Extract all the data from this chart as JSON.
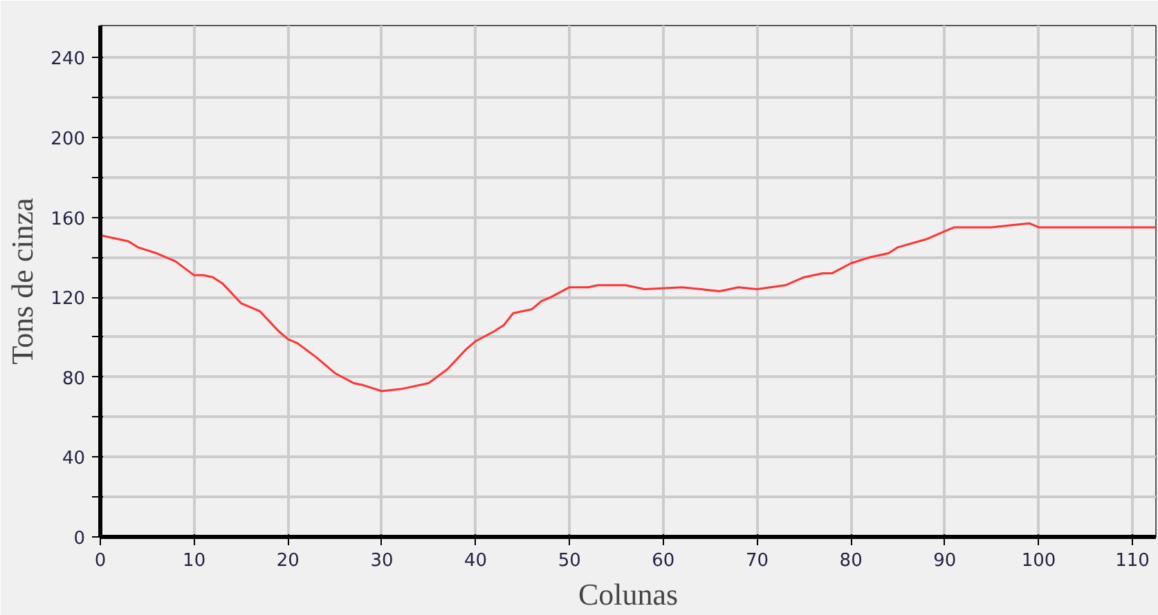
{
  "chart_data": {
    "type": "line",
    "xlabel": "Colunas",
    "ylabel": "Tons de cinza",
    "x": [
      0,
      2,
      3,
      4,
      6,
      8,
      10,
      11,
      12,
      13,
      15,
      17,
      19,
      20,
      21,
      23,
      25,
      27,
      28,
      30,
      32,
      35,
      37,
      39,
      40,
      42,
      43,
      44,
      46,
      47,
      48,
      50,
      52,
      53,
      56,
      58,
      62,
      64,
      66,
      68,
      70,
      73,
      75,
      77,
      78,
      80,
      82,
      84,
      85,
      88,
      90,
      91,
      95,
      97,
      99,
      100,
      112.5
    ],
    "series": [
      {
        "color": "#ff3333",
        "values": [
          151,
          149,
          148,
          145,
          142,
          138,
          131,
          131,
          130,
          127,
          117,
          113,
          103,
          99,
          97,
          90,
          82,
          77,
          76,
          73,
          74,
          77,
          84,
          94,
          98,
          103,
          106,
          112,
          114,
          118,
          120,
          125,
          125,
          126,
          126,
          124,
          125,
          124,
          123,
          125,
          124,
          126,
          130,
          132,
          132,
          137,
          140,
          142,
          145,
          149,
          153,
          155,
          155,
          156,
          157,
          155,
          155
        ]
      }
    ],
    "xlim": [
      0,
      112.5
    ],
    "ylim": [
      0,
      256
    ],
    "xticks": [
      0,
      10,
      20,
      30,
      40,
      50,
      60,
      70,
      80,
      90,
      100,
      110
    ],
    "yticks": [
      0,
      {
        "value": 20,
        "label": null
      },
      40,
      {
        "value": 60,
        "label": null
      },
      80,
      {
        "value": 100,
        "label": null
      },
      120,
      {
        "value": 140,
        "label": null
      },
      160,
      {
        "value": 180,
        "label": null
      },
      200,
      {
        "value": 220,
        "label": null
      },
      240
    ],
    "grid": true,
    "marker": "none",
    "line_style": "solid"
  }
}
